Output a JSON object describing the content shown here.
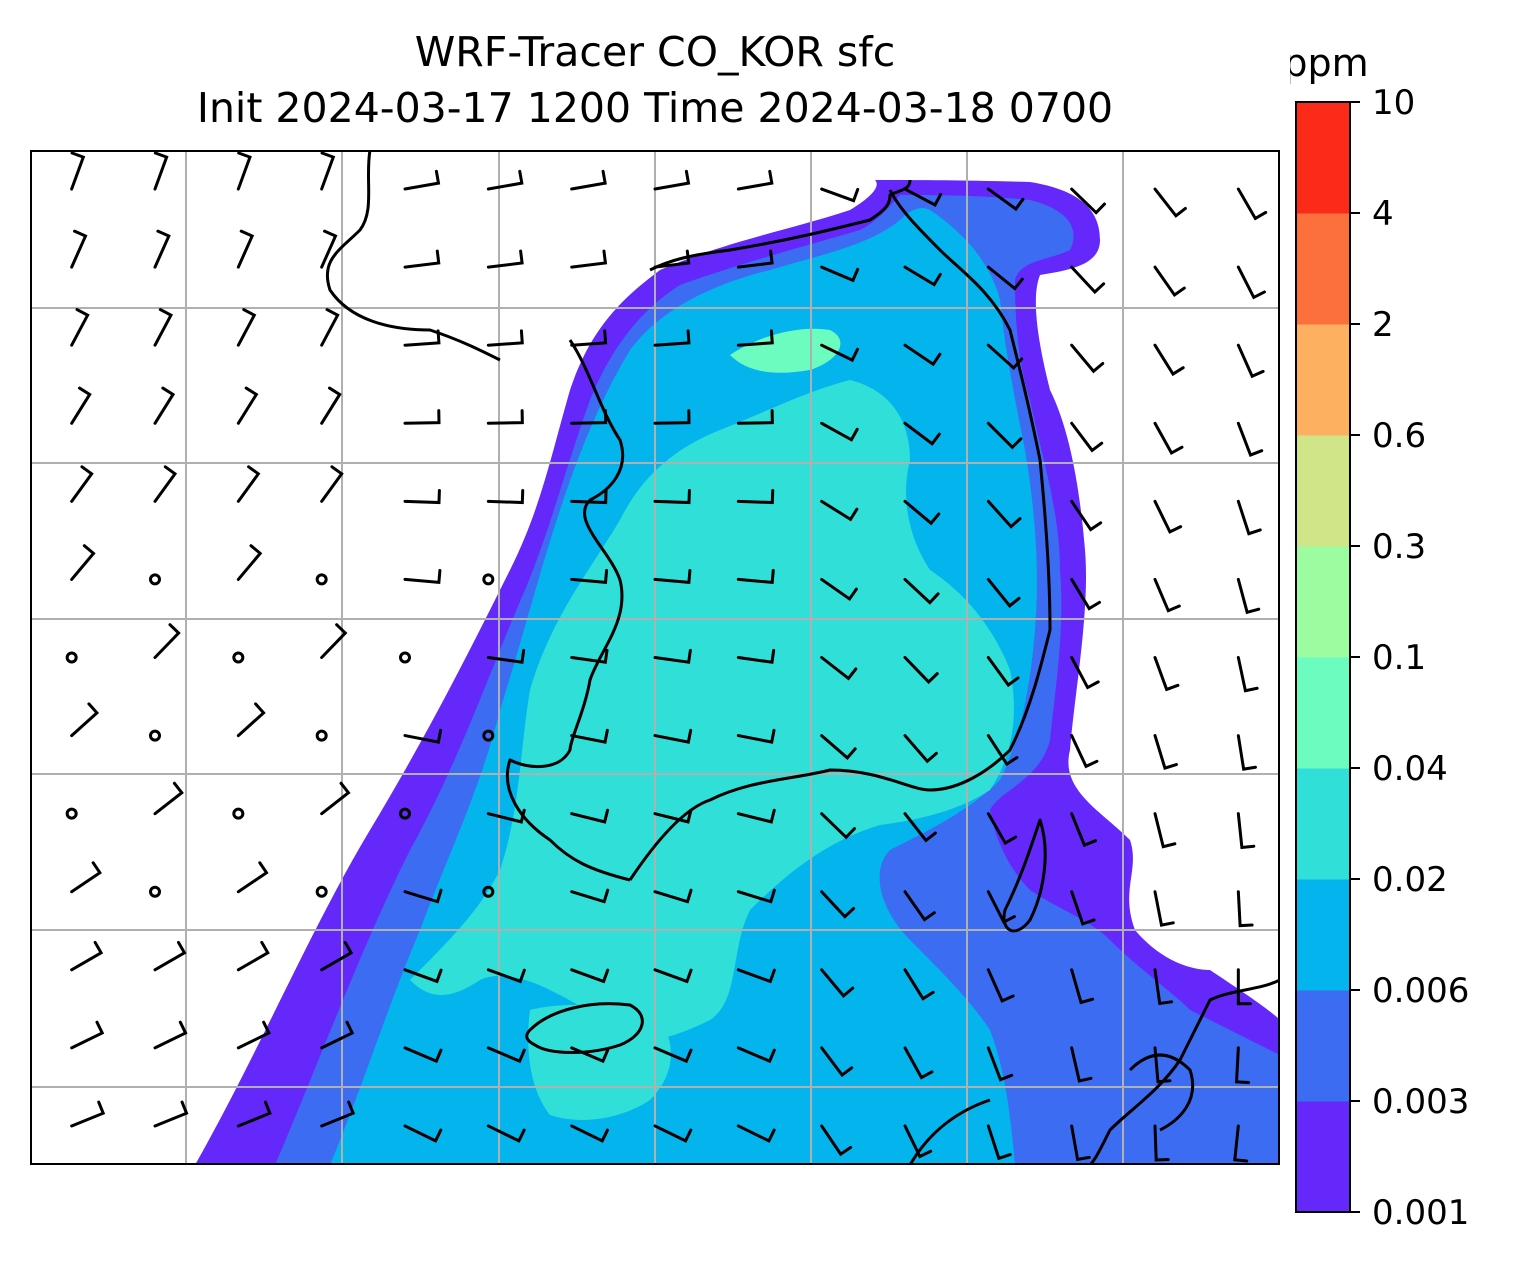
{
  "title_line1": "WRF-Tracer CO_KOR sfc",
  "title_line2": "Init 2024-03-17 1200 Time 2024-03-18 0700",
  "colorbar": {
    "unit": "ppm",
    "levels": [
      "0.001",
      "0.003",
      "0.006",
      "0.02",
      "0.04",
      "0.1",
      "0.3",
      "0.6",
      "2",
      "4",
      "10"
    ],
    "colors": [
      "#6428fa",
      "#3c6cf2",
      "#04b4ec",
      "#30e0d8",
      "#6cfcc0",
      "#9cfca0",
      "#d0e488",
      "#fcb060",
      "#fc703c",
      "#fc2a18"
    ]
  },
  "map": {
    "background": "#ffffff",
    "gridline_color": "#b0b0b0",
    "coastline_color": "#000000",
    "wind_barb_color": "#000000"
  }
}
